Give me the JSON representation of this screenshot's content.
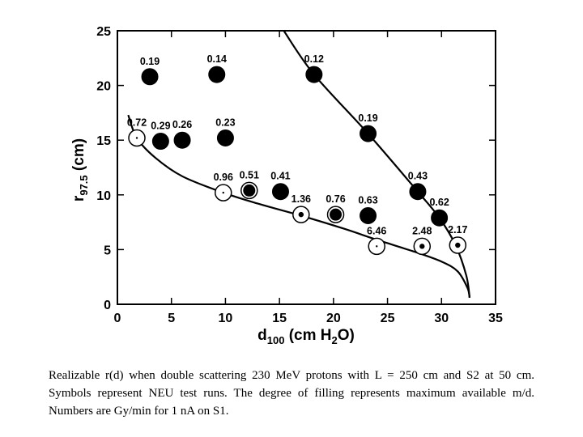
{
  "chart_data": {
    "type": "scatter",
    "title": "",
    "xlabel": {
      "main": "d",
      "sub": "100",
      "unit_pre": " (cm H",
      "unit_sub": "2",
      "unit_post": "O)"
    },
    "ylabel": {
      "main": "r",
      "sub": "97.5",
      "unit": " (cm)"
    },
    "xlim": [
      0,
      35
    ],
    "ylim": [
      0,
      25
    ],
    "xticks": [
      0,
      5,
      10,
      15,
      20,
      25,
      30,
      35
    ],
    "yticks": [
      0,
      5,
      10,
      15,
      20,
      25
    ],
    "grid": false,
    "points": [
      {
        "x": 3.0,
        "y": 20.8,
        "label": "0.19",
        "fill": "full"
      },
      {
        "x": 9.2,
        "y": 21.0,
        "label": "0.14",
        "fill": "full"
      },
      {
        "x": 18.2,
        "y": 21.0,
        "label": "0.12",
        "fill": "full"
      },
      {
        "x": 1.8,
        "y": 15.2,
        "label": "0.72",
        "fill": "empty"
      },
      {
        "x": 4.0,
        "y": 14.9,
        "label": "0.29",
        "fill": "full"
      },
      {
        "x": 6.0,
        "y": 15.0,
        "label": "0.26",
        "fill": "full"
      },
      {
        "x": 10.0,
        "y": 15.2,
        "label": "0.23",
        "fill": "full"
      },
      {
        "x": 23.2,
        "y": 15.6,
        "label": "0.19",
        "fill": "full"
      },
      {
        "x": 9.8,
        "y": 10.2,
        "label": "0.96",
        "fill": "empty"
      },
      {
        "x": 12.2,
        "y": 10.4,
        "label": "0.51",
        "fill": "large"
      },
      {
        "x": 15.1,
        "y": 10.3,
        "label": "0.41",
        "fill": "full"
      },
      {
        "x": 27.8,
        "y": 10.3,
        "label": "0.43",
        "fill": "full"
      },
      {
        "x": 17.0,
        "y": 8.2,
        "label": "1.36",
        "fill": "small"
      },
      {
        "x": 20.2,
        "y": 8.2,
        "label": "0.76",
        "fill": "large"
      },
      {
        "x": 23.2,
        "y": 8.1,
        "label": "0.63",
        "fill": "full"
      },
      {
        "x": 29.8,
        "y": 7.9,
        "label": "0.62",
        "fill": "full"
      },
      {
        "x": 24.0,
        "y": 5.3,
        "label": "6.46",
        "fill": "empty"
      },
      {
        "x": 28.2,
        "y": 5.3,
        "label": "2.48",
        "fill": "small"
      },
      {
        "x": 31.5,
        "y": 5.4,
        "label": "2.17",
        "fill": "small"
      }
    ],
    "upper_curve": [
      [
        15.4,
        25
      ],
      [
        18.2,
        21.0
      ],
      [
        23.2,
        15.6
      ],
      [
        27.8,
        10.3
      ],
      [
        29.8,
        7.9
      ],
      [
        31.3,
        5.4
      ],
      [
        32.3,
        2.6
      ],
      [
        32.6,
        0.6
      ]
    ],
    "lower_curve": [
      [
        1.0,
        17.3
      ],
      [
        1.8,
        15.2
      ],
      [
        3.5,
        13.4
      ],
      [
        6.0,
        11.7
      ],
      [
        9.8,
        10.2
      ],
      [
        13.0,
        9.2
      ],
      [
        17.0,
        8.1
      ],
      [
        21.0,
        6.9
      ],
      [
        24.0,
        5.9
      ],
      [
        27.5,
        4.8
      ],
      [
        30.0,
        3.9
      ],
      [
        31.5,
        3.0
      ],
      [
        32.4,
        1.5
      ],
      [
        32.6,
        0.6
      ]
    ]
  },
  "caption": "Realizable r(d) when double scattering 230 MeV protons with L = 250 cm and S2 at 50 cm. Symbols represent NEU test runs. The degree of filling represents maximum available m/d. Numbers are Gy/min for 1 nA on S1."
}
